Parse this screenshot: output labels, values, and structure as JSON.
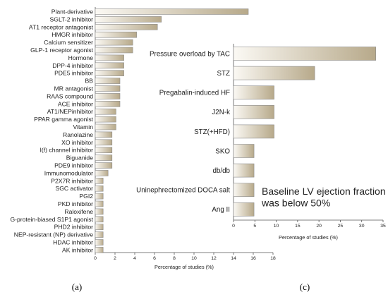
{
  "chart_data": [
    {
      "panel_label": "(a)",
      "type": "bar",
      "orientation": "horizontal",
      "categories": [
        "Plant-derivative",
        "SGLT-2 inhibitor",
        "AT1 receptor antagonist",
        "HMGR inhibitor",
        "Calcium sensitizer",
        "GLP-1 receptor agonist",
        "Hormone",
        "DPP-4 inhibitor",
        "PDE5 inhibitor",
        "BB",
        "MR antagonist",
        "RAAS compound",
        "ACE inhibitor",
        "AT1/NEPinhibitor",
        "PPAR gamma agonist",
        "Vitamin",
        "Ranolazine",
        "XO inhibitor",
        "I(f) channel inhibitor",
        "Biguanide",
        "PDE9 inhibitor",
        "Immunomodulator",
        "P2X7R inhibitor",
        "SGC activator",
        "PGI2",
        "PKD inhibitor",
        "Raloxifene",
        "G-protein-biased S1P1 agonist",
        "PHD2 inhibitor",
        "NEP-resistant (NP) derivative",
        "HDAC inhibitor",
        "AK inhibitor"
      ],
      "values": [
        15.5,
        6.7,
        6.3,
        4.2,
        3.8,
        3.8,
        2.9,
        2.9,
        2.9,
        2.5,
        2.5,
        2.5,
        2.5,
        2.1,
        2.1,
        2.1,
        1.7,
        1.7,
        1.7,
        1.7,
        1.7,
        1.3,
        0.8,
        0.8,
        0.8,
        0.8,
        0.8,
        0.8,
        0.8,
        0.8,
        0.8,
        0.8
      ],
      "xlabel": "Percentage of studies (%)",
      "xlim": [
        0,
        18
      ],
      "xticks": [
        0,
        2,
        4,
        6,
        8,
        10,
        12,
        14,
        16,
        18
      ],
      "grid": false
    },
    {
      "panel_label": "(c)",
      "type": "bar",
      "orientation": "horizontal",
      "categories": [
        "Pressure overload by TAC",
        "STZ",
        "Pregabalin-induced HF",
        "J2N-k",
        "STZ(+HFD)",
        "SKO",
        "db/db",
        "Uninephrectomized DOCA salt",
        "Ang II"
      ],
      "values": [
        33.3,
        19.0,
        9.5,
        9.5,
        9.5,
        4.8,
        4.8,
        4.8,
        4.8
      ],
      "xlabel": "Percentage of studies (%)",
      "xlim": [
        0,
        35
      ],
      "xticks": [
        0,
        5,
        10,
        15,
        20,
        25,
        30,
        35
      ],
      "annotation": "Baseline LV ejection fraction\nwas below 50%",
      "grid": false
    }
  ],
  "colors": {
    "bar_dark": "#b7a98a",
    "bar_light": "#fbf9f4",
    "bar_stroke": "#8c8c8c",
    "axis": "#555555"
  }
}
